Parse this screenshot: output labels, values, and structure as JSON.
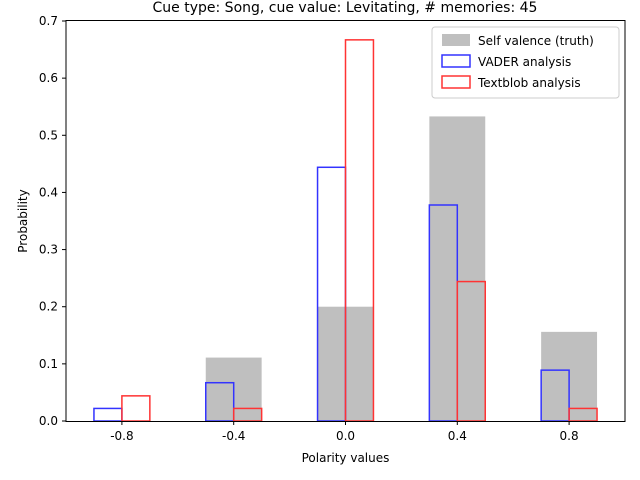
{
  "chart_data": {
    "type": "bar",
    "title": "Cue type: Song, cue value: Levitating, # memories: 45",
    "xlabel": "Polarity values",
    "ylabel": "Probability",
    "ylim": [
      0,
      0.7
    ],
    "xlim": [
      -1.0,
      1.0
    ],
    "x_ticks": [
      -0.8,
      -0.4,
      0.0,
      0.4,
      0.8
    ],
    "x_tick_labels": [
      "-0.8",
      "-0.4",
      "0.0",
      "0.4",
      "0.8"
    ],
    "y_ticks": [
      0.0,
      0.1,
      0.2,
      0.3,
      0.4,
      0.5,
      0.6,
      0.7
    ],
    "y_tick_labels": [
      "0.0",
      "0.1",
      "0.2",
      "0.3",
      "0.4",
      "0.5",
      "0.6",
      "0.7"
    ],
    "legend_position": "top-right",
    "series": [
      {
        "name": "Self valence (truth)",
        "style": "filled",
        "color": "#bfbfbf",
        "bins": [
          {
            "left": -0.9,
            "right": -0.7,
            "value": 0.0
          },
          {
            "left": -0.5,
            "right": -0.3,
            "value": 0.111
          },
          {
            "left": -0.1,
            "right": 0.1,
            "value": 0.2
          },
          {
            "left": 0.3,
            "right": 0.5,
            "value": 0.533
          },
          {
            "left": 0.7,
            "right": 0.9,
            "value": 0.156
          }
        ]
      },
      {
        "name": "VADER analysis",
        "style": "outline",
        "color": "#3333ff",
        "bins": [
          {
            "left": -0.9,
            "right": -0.8,
            "value": 0.022
          },
          {
            "left": -0.5,
            "right": -0.4,
            "value": 0.067
          },
          {
            "left": -0.1,
            "right": 0.0,
            "value": 0.444
          },
          {
            "left": 0.3,
            "right": 0.4,
            "value": 0.378
          },
          {
            "left": 0.7,
            "right": 0.8,
            "value": 0.089
          }
        ]
      },
      {
        "name": "Textblob analysis",
        "style": "outline",
        "color": "#ff3333",
        "bins": [
          {
            "left": -0.8,
            "right": -0.7,
            "value": 0.044
          },
          {
            "left": -0.4,
            "right": -0.3,
            "value": 0.022
          },
          {
            "left": 0.0,
            "right": 0.1,
            "value": 0.667
          },
          {
            "left": 0.4,
            "right": 0.5,
            "value": 0.244
          },
          {
            "left": 0.8,
            "right": 0.9,
            "value": 0.022
          }
        ]
      }
    ]
  }
}
